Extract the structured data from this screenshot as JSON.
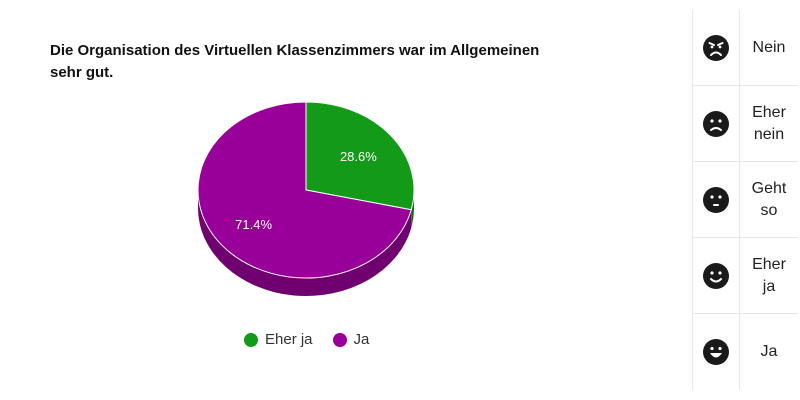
{
  "chart_data": {
    "type": "pie",
    "title": "Die Organisation des Virtuellen Klassenzimmers war im Allgemeinen sehr gut.",
    "categories": [
      "Eher ja",
      "Ja"
    ],
    "values": [
      28.6,
      71.4
    ],
    "value_labels": [
      "28.6%",
      "71.4%"
    ],
    "colors": [
      "#149a19",
      "#980099"
    ],
    "side_colors": [
      "#0f7313",
      "#700070"
    ],
    "legend_position": "bottom",
    "style": "3d"
  },
  "scale": {
    "items": [
      {
        "label": "Nein",
        "icon": "angry-face-icon"
      },
      {
        "label": "Eher nein",
        "icon": "sad-face-icon"
      },
      {
        "label": "Geht so",
        "icon": "neutral-face-icon"
      },
      {
        "label": "Eher ja",
        "icon": "smile-face-icon"
      },
      {
        "label": "Ja",
        "icon": "grin-face-icon"
      }
    ]
  }
}
